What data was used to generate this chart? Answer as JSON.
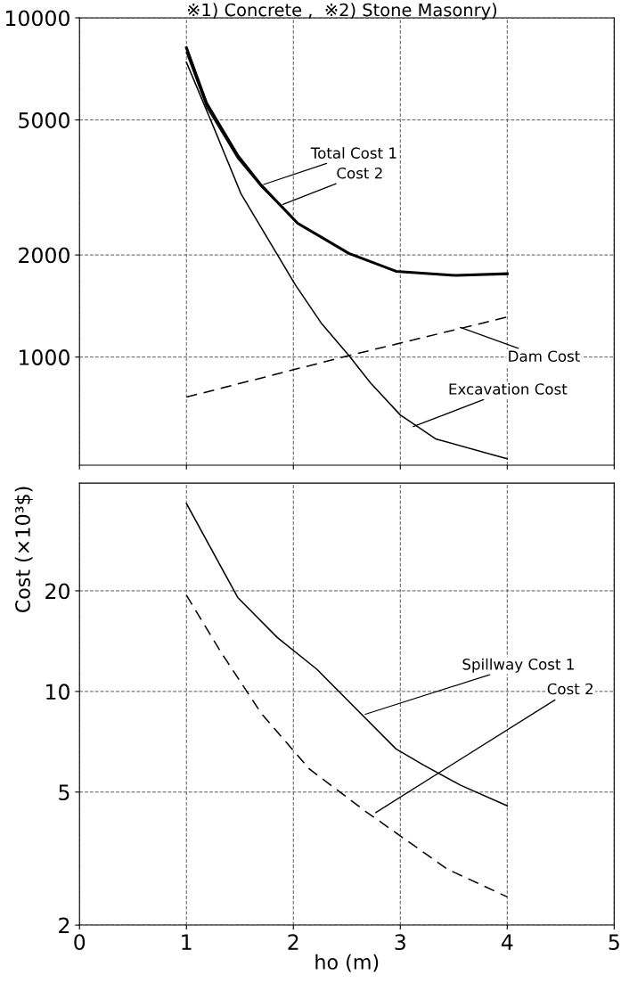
{
  "chart_data": [
    {
      "type": "line",
      "annotations": [
        "※1) Concrete ,  ※2) Stone Masonry)",
        {
          "text": "Total Cost 1",
          "x": 1.7,
          "y": 3210
        },
        {
          "text": "Cost 2",
          "x": 1.88,
          "y": 2800
        },
        {
          "text": "Dam Cost",
          "x": 3.54,
          "y": 1230
        },
        {
          "text": "Excavation Cost",
          "x": 3.1,
          "y": 620
        }
      ],
      "xlim": [
        0,
        5
      ],
      "xticks": [
        0,
        1,
        2,
        3,
        4,
        5
      ],
      "ylim": [
        480,
        10000
      ],
      "yticks": [
        1000,
        2000,
        5000,
        10000
      ],
      "log": "y",
      "grid": true,
      "tick_labels": "y",
      "series": [
        {
          "color": "#000000",
          "x": [
            1.0,
            1.19,
            1.48,
            1.7,
            2.04,
            2.52,
            2.96,
            3.52,
            4.0
          ],
          "values": [
            8160,
            5590,
            3930,
            3210,
            2480,
            2020,
            1790,
            1740,
            1760
          ]
        },
        {
          "color": "#000000",
          "x": [
            1.0,
            1.19,
            1.48,
            1.7,
            2.04,
            2.52,
            2.96,
            3.52,
            4.0
          ],
          "values": [
            7900,
            5450,
            3850,
            3180,
            2480,
            2020,
            1790,
            1740,
            1760
          ]
        },
        {
          "color": "#000000",
          "line_style": "dashed",
          "x": [
            1.0,
            2.52,
            4.0
          ],
          "values": [
            762,
            1010,
            1312
          ]
        },
        {
          "color": "#000000",
          "x": [
            1.0,
            1.25,
            1.51,
            2.02,
            2.26,
            2.52,
            2.72,
            3.0,
            3.33,
            4.0
          ],
          "values": [
            7400,
            4800,
            3030,
            1630,
            1260,
            1010,
            840,
            675,
            574,
            501
          ]
        }
      ]
    },
    {
      "type": "line",
      "xlabel": "ho (m)",
      "ylabel": "Cost (×10³$)",
      "annotations": [
        {
          "text": "Spillway Cost 1",
          "x": 2.65,
          "y": 8.5
        },
        {
          "text": "Cost 2",
          "x": 2.75,
          "y": 4.3
        }
      ],
      "xlim": [
        0,
        5
      ],
      "xticks": [
        0,
        1,
        2,
        3,
        4,
        5
      ],
      "ylim": [
        2,
        42
      ],
      "yticks": [
        2,
        5,
        10,
        20
      ],
      "log": "y",
      "grid": true,
      "series": [
        {
          "color": "#000000",
          "x": [
            1.0,
            1.48,
            1.85,
            2.22,
            2.59,
            2.96,
            3.22,
            3.56,
            4.0
          ],
          "values": [
            36.5,
            19.1,
            14.5,
            11.65,
            8.85,
            6.73,
            6.02,
            5.25,
            4.55
          ]
        },
        {
          "color": "#000000",
          "line_style": "dashed",
          "x": [
            1.0,
            1.33,
            1.7,
            2.15,
            2.67,
            3.44,
            4.0
          ],
          "values": [
            19.4,
            13.0,
            8.6,
            5.86,
            4.39,
            2.94,
            2.43
          ]
        }
      ]
    }
  ]
}
